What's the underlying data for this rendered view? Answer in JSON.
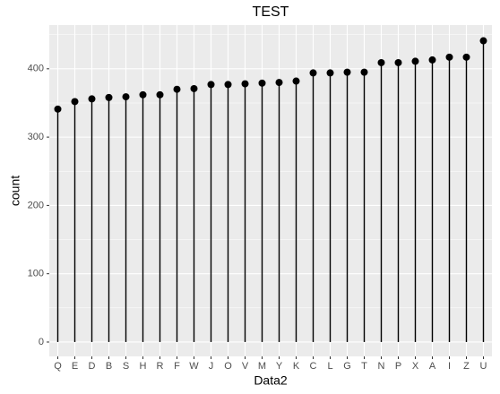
{
  "chart_data": {
    "type": "lollipop",
    "title": "TEST",
    "x_label": "Data2",
    "y_label": "count",
    "categories": [
      "Q",
      "E",
      "D",
      "B",
      "S",
      "H",
      "R",
      "F",
      "W",
      "J",
      "O",
      "V",
      "M",
      "Y",
      "K",
      "C",
      "L",
      "G",
      "T",
      "N",
      "P",
      "X",
      "A",
      "I",
      "Z",
      "U"
    ],
    "values": [
      341,
      352,
      356,
      358,
      359,
      362,
      362,
      370,
      371,
      377,
      377,
      378,
      379,
      380,
      382,
      394,
      394,
      395,
      395,
      409,
      409,
      411,
      413,
      417,
      417,
      441
    ],
    "color": "#000000",
    "ylim": [
      -21,
      464
    ],
    "yticks": [
      0,
      100,
      200,
      300,
      400
    ],
    "y_minor_ticks": [
      50,
      150,
      250,
      350,
      450
    ],
    "grid": true
  }
}
